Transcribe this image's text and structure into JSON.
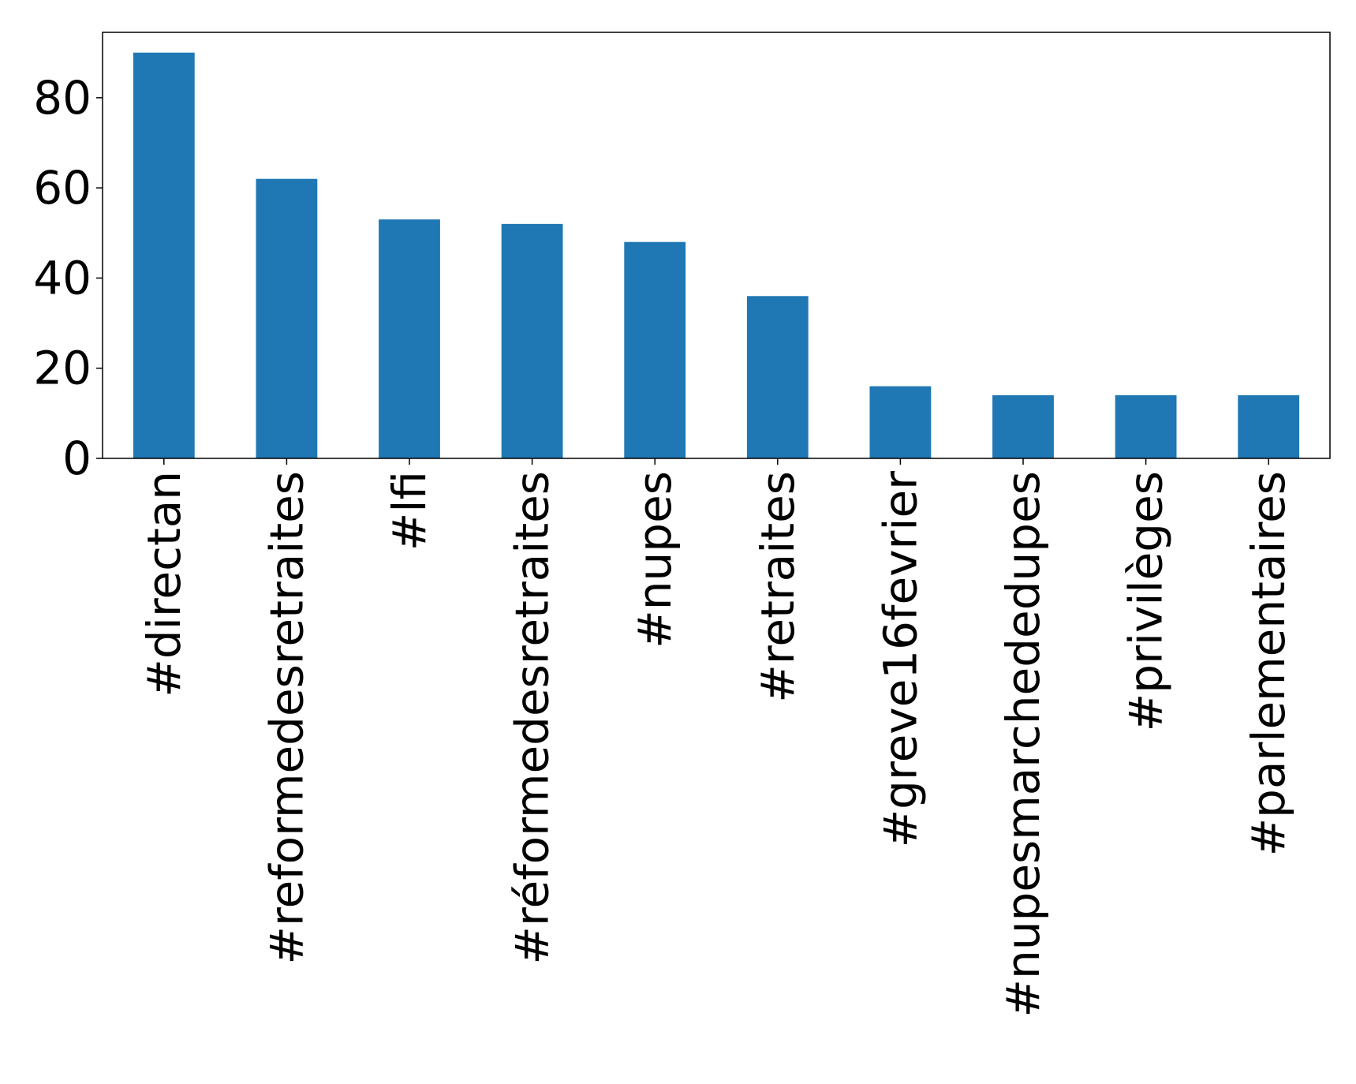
{
  "chart_data": {
    "type": "bar",
    "title": "",
    "xlabel": "",
    "ylabel": "",
    "categories": [
      "#directan",
      "#reformedesretraites",
      "#lfi",
      "#réformedesretraites",
      "#nupes",
      "#retraites",
      "#greve16fevrier",
      "#nupesmarchededupes",
      "#privilèges",
      "#parlementaires"
    ],
    "values": [
      90,
      62,
      53,
      52,
      48,
      36,
      16,
      14,
      14,
      14
    ],
    "ylim": [
      0,
      94.5
    ],
    "yticks": [
      0,
      20,
      40,
      60,
      80
    ],
    "grid": false,
    "legend": "none",
    "bar_color": "#1f77b4"
  }
}
